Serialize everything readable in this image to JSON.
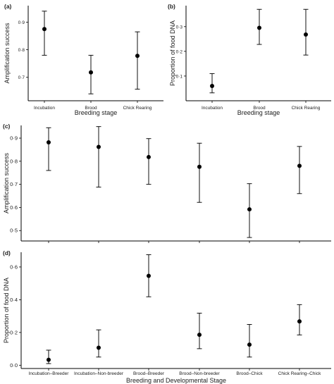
{
  "chart_data": [
    {
      "type": "scatter",
      "panel_label": "(a)",
      "xlabel": "Breeding stage",
      "ylabel": "Amplification success",
      "categories": [
        "Incubation",
        "Brood",
        "Chick Rearing"
      ],
      "values": [
        0.875,
        0.718,
        0.778
      ],
      "lower": [
        0.78,
        0.64,
        0.657
      ],
      "upper": [
        0.94,
        0.78,
        0.865
      ],
      "ylim": [
        0.615,
        0.96
      ],
      "yticks": [
        0.7,
        0.8,
        0.9
      ],
      "ytick_labels": [
        "0·7",
        "0·8",
        "0·9"
      ],
      "grid": false
    },
    {
      "type": "scatter",
      "panel_label": "(b)",
      "xlabel": "Breeding stage",
      "ylabel": "Proportion of food DNA",
      "categories": [
        "Incubation",
        "Brood",
        "Chick Rearing"
      ],
      "values": [
        0.06,
        0.295,
        0.268
      ],
      "lower": [
        0.032,
        0.228,
        0.185
      ],
      "upper": [
        0.11,
        0.37,
        0.37
      ],
      "ylim": [
        0.0,
        0.385
      ],
      "yticks": [
        0.1,
        0.2,
        0.3
      ],
      "ytick_labels": [
        "0·1",
        "0·2",
        "0·3"
      ],
      "grid": false
    },
    {
      "type": "scatter",
      "panel_label": "(c)",
      "xlabel": "",
      "ylabel": "Amplification success",
      "categories": [
        "Incubation-Breeder",
        "Incubation-Non-breeder",
        "Brood-Breeder",
        "Brood-Non-breeder",
        "Brood-Chick",
        "Chick Rearing-Chick"
      ],
      "values": [
        0.882,
        0.862,
        0.818,
        0.776,
        0.592,
        0.78
      ],
      "lower": [
        0.76,
        0.688,
        0.7,
        0.622,
        0.47,
        0.66
      ],
      "upper": [
        0.945,
        0.95,
        0.898,
        0.878,
        0.703,
        0.864
      ],
      "ylim": [
        0.455,
        0.955
      ],
      "yticks": [
        0.5,
        0.6,
        0.7,
        0.8,
        0.9
      ],
      "ytick_labels": [
        "0·5",
        "0·6",
        "0·7",
        "0·8",
        "0·9"
      ],
      "grid": false
    },
    {
      "type": "scatter",
      "panel_label": "(d)",
      "xlabel": "Breeding and Developmental Stage",
      "ylabel": "Proportion of food DNA",
      "categories": [
        "Incubation–Breeder",
        "Incubation–Non-breeder",
        "Brood–Breeder",
        "Brood–Non-breeder",
        "Brood–Chick",
        "Chick Rearing–Chick"
      ],
      "values": [
        0.033,
        0.107,
        0.546,
        0.186,
        0.126,
        0.268
      ],
      "lower": [
        0.01,
        0.05,
        0.418,
        0.101,
        0.05,
        0.185
      ],
      "upper": [
        0.092,
        0.216,
        0.675,
        0.318,
        0.249,
        0.37
      ],
      "ylim": [
        -0.02,
        0.69
      ],
      "yticks": [
        0.0,
        0.2,
        0.4,
        0.6
      ],
      "ytick_labels": [
        "0·0",
        "0·2",
        "0·4",
        "0·6"
      ],
      "grid": false
    }
  ]
}
